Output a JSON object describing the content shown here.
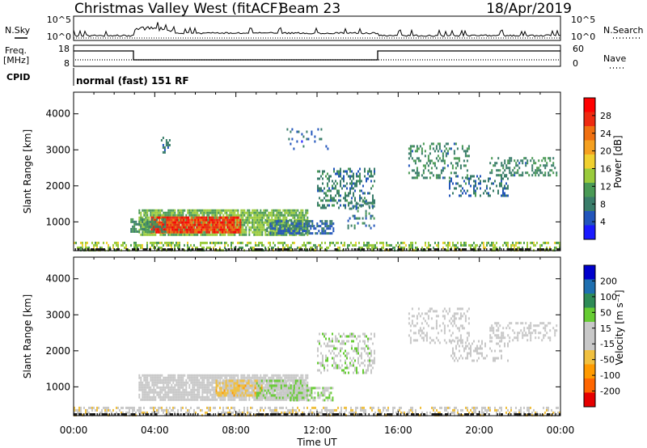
{
  "header": {
    "station": "Christmas Valley West (fitACF)",
    "beam": "Beam 23",
    "date": "18/Apr/2019"
  },
  "side_labels": {
    "nsky": "N.Sky",
    "nsearch": "N.Search",
    "freq": "Freq.",
    "freq_unit": "[MHz]",
    "nave": "Nave",
    "cpid": "CPID",
    "cpid_value": "normal (fast) 151 RF"
  },
  "noise_panel": {
    "ticks_left": [
      "10^5",
      "10^0"
    ],
    "ticks_right": [
      "10^5",
      "10^0"
    ]
  },
  "freq_panel": {
    "ticks_left": [
      "18",
      "8"
    ],
    "ticks_right": [
      "60",
      "0"
    ]
  },
  "colors": {
    "power": [
      "#1a1aff",
      "#2255bb",
      "#3a7d6a",
      "#4a9a55",
      "#9acb3c",
      "#f0d030",
      "#f5a020",
      "#f07010",
      "#ee2a10",
      "#ff0000"
    ],
    "velocity": [
      "#e60000",
      "#ff6600",
      "#ff9a00",
      "#f0c040",
      "#c8c8c8",
      "#c8c8c8",
      "#66cc33",
      "#2e8b57",
      "#1e6fb0",
      "#0000cc"
    ],
    "ground": "#1a1a1a"
  },
  "chart_data": [
    {
      "type": "heatmap",
      "panel": "power",
      "xlabel": "Time UT",
      "ylabel": "Slant Range [km]",
      "x_ticks": [
        "00:00",
        "04:00",
        "08:00",
        "12:00",
        "16:00",
        "20:00",
        "00:00"
      ],
      "xlim_hours": [
        0,
        24
      ],
      "y_ticks": [
        1000,
        2000,
        3000,
        4000
      ],
      "ylim_km": [
        200,
        4600
      ],
      "colorbar_label": "Power [dB]",
      "colorbar_ticks": [
        "4",
        "8",
        "12",
        "16",
        "20",
        "24",
        "28"
      ],
      "colorbar_range": [
        0,
        32
      ],
      "regions": [
        {
          "t0": 3.2,
          "t1": 11.5,
          "r0": 650,
          "r1": 1350,
          "value": 13,
          "density": 0.85
        },
        {
          "t0": 3.8,
          "t1": 8.2,
          "r0": 700,
          "r1": 1150,
          "value": 27,
          "density": 0.9
        },
        {
          "t0": 2.8,
          "t1": 4.5,
          "r0": 750,
          "r1": 1100,
          "value": 10,
          "density": 0.6
        },
        {
          "t0": 9.5,
          "t1": 12.8,
          "r0": 700,
          "r1": 1050,
          "value": 6,
          "density": 0.55
        },
        {
          "t0": 0.0,
          "t1": 24.0,
          "r0": 200,
          "r1": 450,
          "value": 14,
          "density": 0.45
        },
        {
          "t0": 12.0,
          "t1": 14.8,
          "r0": 1400,
          "r1": 2500,
          "value": 8,
          "density": 0.35
        },
        {
          "t0": 13.5,
          "t1": 14.8,
          "r0": 800,
          "r1": 1600,
          "value": 8,
          "density": 0.35
        },
        {
          "t0": 16.5,
          "t1": 19.5,
          "r0": 2200,
          "r1": 3200,
          "value": 9,
          "density": 0.3
        },
        {
          "t0": 18.5,
          "t1": 21.5,
          "r0": 1700,
          "r1": 2300,
          "value": 7,
          "density": 0.3
        },
        {
          "t0": 20.5,
          "t1": 23.8,
          "r0": 2300,
          "r1": 2800,
          "value": 9,
          "density": 0.35
        },
        {
          "t0": 4.3,
          "t1": 4.7,
          "r0": 2900,
          "r1": 3500,
          "value": 7,
          "density": 0.3
        },
        {
          "t0": 10.5,
          "t1": 12.5,
          "r0": 3000,
          "r1": 3600,
          "value": 6,
          "density": 0.1
        }
      ]
    },
    {
      "type": "heatmap",
      "panel": "velocity",
      "xlabel": "Time UT",
      "ylabel": "Slant Range [km]",
      "x_ticks": [
        "00:00",
        "04:00",
        "08:00",
        "12:00",
        "16:00",
        "20:00",
        "00:00"
      ],
      "xlim_hours": [
        0,
        24
      ],
      "y_ticks": [
        1000,
        2000,
        3000,
        4000
      ],
      "ylim_km": [
        200,
        4600
      ],
      "colorbar_label": "Velocity [m s⁻¹]",
      "colorbar_ticks": [
        "-200",
        "-100",
        "-50",
        "-15",
        "15",
        "50",
        "100",
        "200"
      ],
      "colorbar_range": [
        -250,
        250
      ],
      "regions": [
        {
          "t0": 3.2,
          "t1": 11.5,
          "r0": 650,
          "r1": 1350,
          "value": 0,
          "density": 0.85
        },
        {
          "t0": 7.0,
          "t1": 9.3,
          "r0": 750,
          "r1": 1200,
          "value": -60,
          "density": 0.85
        },
        {
          "t0": 9.0,
          "t1": 11.5,
          "r0": 700,
          "r1": 1200,
          "value": 40,
          "density": 0.7
        },
        {
          "t0": 10.5,
          "t1": 12.8,
          "r0": 600,
          "r1": 1000,
          "value": 40,
          "density": 0.6
        },
        {
          "t0": 0.0,
          "t1": 24.0,
          "r0": 200,
          "r1": 450,
          "value": -30,
          "density": 0.45
        },
        {
          "t0": 12.0,
          "t1": 14.8,
          "r0": 1400,
          "r1": 2500,
          "value": 30,
          "density": 0.35
        },
        {
          "t0": 16.5,
          "t1": 19.5,
          "r0": 2200,
          "r1": 3200,
          "value": 0,
          "density": 0.3
        },
        {
          "t0": 18.5,
          "t1": 21.5,
          "r0": 1700,
          "r1": 2300,
          "value": 0,
          "density": 0.3
        },
        {
          "t0": 20.5,
          "t1": 23.8,
          "r0": 2300,
          "r1": 2800,
          "value": 0,
          "density": 0.35
        }
      ]
    }
  ]
}
